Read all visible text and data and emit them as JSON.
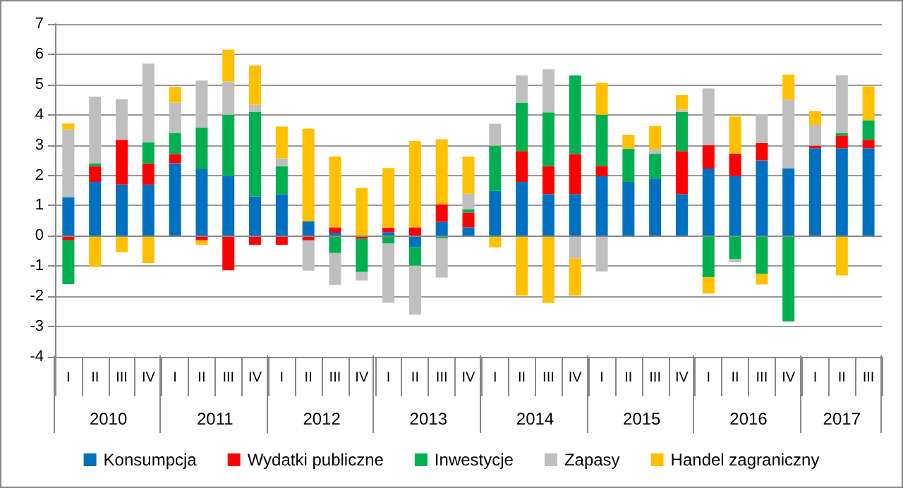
{
  "chart_data": {
    "type": "bar",
    "stacked": true,
    "categories": [
      "I",
      "II",
      "III",
      "IV",
      "I",
      "II",
      "III",
      "IV",
      "I",
      "II",
      "III",
      "IV",
      "I",
      "II",
      "III",
      "IV",
      "I",
      "II",
      "III",
      "IV",
      "I",
      "II",
      "III",
      "IV",
      "I",
      "II",
      "III",
      "IV",
      "I",
      "II",
      "III"
    ],
    "annotations": [
      "2010",
      "2011",
      "2012",
      "2013",
      "2014",
      "2015",
      "2016",
      "2017"
    ],
    "series": [
      {
        "name": "Konsumpcja",
        "color": "#0070c0",
        "values": [
          1.28,
          1.78,
          1.69,
          1.69,
          2.4,
          2.2,
          1.97,
          1.3,
          1.38,
          0.48,
          0.1,
          0,
          0.12,
          -0.37,
          0.46,
          0.28,
          1.48,
          1.78,
          1.38,
          1.38,
          1.97,
          1.78,
          1.89,
          1.38,
          2.22,
          1.97,
          2.49,
          2.22,
          2.89,
          2.89,
          2.89
        ]
      },
      {
        "name": "Wydatki publiczne",
        "color": "#ff0000",
        "values": [
          -0.15,
          0.52,
          1.48,
          0.7,
          0.3,
          -0.15,
          -1.14,
          -0.3,
          -0.3,
          -0.15,
          0.18,
          -0.1,
          0.15,
          0.28,
          0.58,
          0.49,
          0,
          1.02,
          0.92,
          1.32,
          0.34,
          0,
          0,
          1.42,
          0.77,
          0.74,
          0.58,
          0,
          0.09,
          0.42,
          0.28
        ]
      },
      {
        "name": "Inwestycje",
        "color": "#00b050",
        "values": [
          -1.45,
          0.1,
          0,
          0.7,
          0.7,
          1.38,
          2.03,
          2.8,
          0.92,
          0,
          -0.57,
          -1.1,
          -0.26,
          -0.62,
          -0.08,
          0.1,
          1.5,
          1.6,
          1.78,
          2.6,
          1.69,
          1.1,
          0.82,
          1.29,
          -1.37,
          -0.77,
          -1.26,
          -2.83,
          0,
          0.09,
          0.65
        ]
      },
      {
        "name": "Zapasy",
        "color": "#bfbfbf",
        "values": [
          2.23,
          2.2,
          1.35,
          2.6,
          1.0,
          1.55,
          1.1,
          0.23,
          0.26,
          -1.0,
          -1.05,
          -0.28,
          -1.95,
          -1.62,
          -1.3,
          0.52,
          0.72,
          0.9,
          1.42,
          -0.75,
          -1.18,
          0,
          0.15,
          0.08,
          1.88,
          -0.11,
          0.95,
          2.28,
          0.69,
          1.91,
          0
        ]
      },
      {
        "name": "Handel zagraniczny",
        "color": "#ffc000",
        "values": [
          0.2,
          -1.03,
          -0.54,
          -0.9,
          0.52,
          -0.15,
          1.05,
          1.3,
          1.05,
          3.06,
          2.34,
          1.58,
          1.97,
          2.85,
          2.15,
          1.23,
          -0.38,
          -1.98,
          -2.22,
          -1.23,
          1.05,
          0.46,
          0.77,
          0.48,
          -0.54,
          1.23,
          -0.35,
          0.83,
          0.45,
          -1.31,
          1.12
        ]
      }
    ],
    "ylim": [
      -4,
      7
    ],
    "yticks": [
      -4,
      -3,
      -2,
      -1,
      0,
      1,
      2,
      3,
      4,
      5,
      6,
      7
    ],
    "grid": "y",
    "legend": "bottom"
  }
}
